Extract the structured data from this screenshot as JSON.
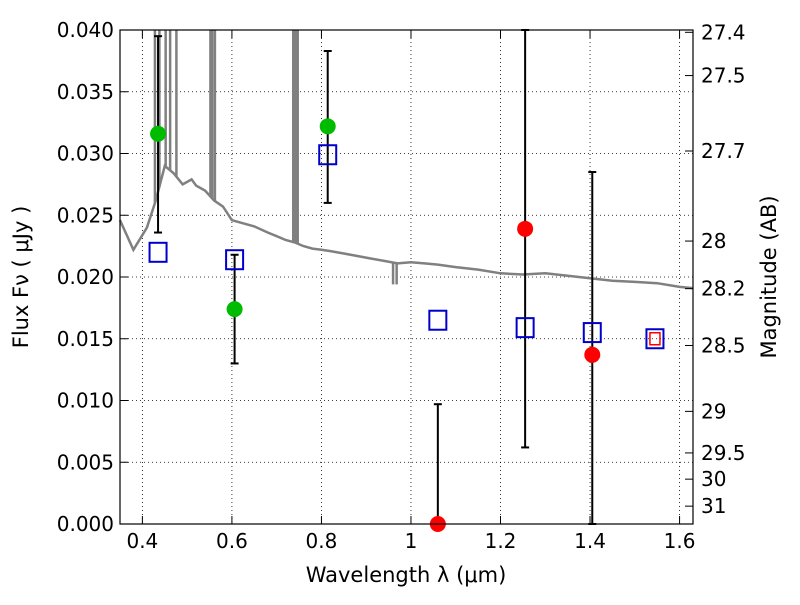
{
  "chart_data": {
    "type": "scatter",
    "title": "",
    "xlabel": "Wavelength  λ (μm)",
    "ylabel": "Flux  Fν  ( μJy )",
    "y2label": "Magnitude (AB)",
    "xlim": [
      0.35,
      1.63
    ],
    "ylim": [
      0.0,
      0.04
    ],
    "grid": true,
    "grid_style": "dotted",
    "x_ticks": [
      0.4,
      0.6,
      0.8,
      1.0,
      1.2,
      1.4,
      1.6
    ],
    "x_tick_labels": [
      "0.4",
      "0.6",
      "0.8",
      "1",
      "1.2",
      "1.4",
      "1.6"
    ],
    "y_ticks": [
      0.0,
      0.005,
      0.01,
      0.015,
      0.02,
      0.025,
      0.03,
      0.035,
      0.04
    ],
    "y_tick_labels": [
      "0.000",
      "0.005",
      "0.010",
      "0.015",
      "0.020",
      "0.025",
      "0.030",
      "0.035",
      "0.040"
    ],
    "mag_ticks": [
      27.4,
      27.5,
      27.7,
      28,
      28.2,
      28.5,
      29,
      29.5,
      30,
      31
    ],
    "mag_tick_labels": [
      "27.4",
      "27.5",
      "27.7",
      "28",
      "28.2",
      "28.5",
      "29",
      "29.5",
      "30",
      "31"
    ],
    "colors": {
      "detected_marker": "#00bb00",
      "red_marker": "#ff0000",
      "model_square": "#0000cc",
      "model_square_inner": "#ff0000",
      "sed_line": "#808080",
      "error_bar": "#000000"
    },
    "series": [
      {
        "marker": "circle",
        "color": "#00bb00",
        "points": [
          {
            "x": 0.435,
            "y": 0.0316,
            "yerr_low": 0.0236,
            "yerr_high": 0.0395
          },
          {
            "x": 0.606,
            "y": 0.0174,
            "yerr_low": 0.013,
            "yerr_high": 0.0218
          },
          {
            "x": 0.814,
            "y": 0.0322,
            "yerr_low": 0.026,
            "yerr_high": 0.0383
          }
        ]
      },
      {
        "marker": "circle",
        "color": "#ff0000",
        "points": [
          {
            "x": 1.06,
            "y": 0.0,
            "yerr_low": 0.0,
            "yerr_high": 0.0097
          },
          {
            "x": 1.255,
            "y": 0.0239,
            "yerr_low": 0.0062,
            "yerr_high": 0.04
          },
          {
            "x": 1.405,
            "y": 0.0137,
            "yerr_low": 0.0,
            "yerr_high": 0.0285
          }
        ]
      },
      {
        "marker": "square",
        "color": "#0000cc",
        "points": [
          {
            "x": 0.435,
            "y": 0.022
          },
          {
            "x": 0.606,
            "y": 0.0214
          },
          {
            "x": 0.814,
            "y": 0.0299
          },
          {
            "x": 1.06,
            "y": 0.0165
          },
          {
            "x": 1.255,
            "y": 0.0159
          },
          {
            "x": 1.405,
            "y": 0.0155
          },
          {
            "x": 1.545,
            "y": 0.015
          }
        ]
      }
    ],
    "inner_square": {
      "x": 1.545,
      "y": 0.015,
      "color": "#ff0000"
    },
    "sed_continuum": [
      [
        0.35,
        0.0246
      ],
      [
        0.38,
        0.0222
      ],
      [
        0.41,
        0.024
      ],
      [
        0.43,
        0.0262
      ],
      [
        0.45,
        0.029
      ],
      [
        0.47,
        0.0284
      ],
      [
        0.49,
        0.0275
      ],
      [
        0.51,
        0.0279
      ],
      [
        0.52,
        0.0274
      ],
      [
        0.54,
        0.027
      ],
      [
        0.56,
        0.0262
      ],
      [
        0.58,
        0.0257
      ],
      [
        0.6,
        0.0246
      ],
      [
        0.62,
        0.0244
      ],
      [
        0.65,
        0.0241
      ],
      [
        0.68,
        0.0236
      ],
      [
        0.7,
        0.0233
      ],
      [
        0.72,
        0.023
      ],
      [
        0.74,
        0.0228
      ],
      [
        0.76,
        0.0225
      ],
      [
        0.78,
        0.0223
      ],
      [
        0.8,
        0.0222
      ],
      [
        0.82,
        0.0221
      ],
      [
        0.85,
        0.0219
      ],
      [
        0.88,
        0.0217
      ],
      [
        0.91,
        0.0215
      ],
      [
        0.94,
        0.0213
      ],
      [
        0.97,
        0.0211
      ],
      [
        1.0,
        0.0212
      ],
      [
        1.03,
        0.0211
      ],
      [
        1.06,
        0.021
      ],
      [
        1.1,
        0.0208
      ],
      [
        1.15,
        0.0206
      ],
      [
        1.2,
        0.0203
      ],
      [
        1.25,
        0.0202
      ],
      [
        1.3,
        0.0203
      ],
      [
        1.35,
        0.0201
      ],
      [
        1.4,
        0.0199
      ],
      [
        1.45,
        0.0197
      ],
      [
        1.5,
        0.0196
      ],
      [
        1.55,
        0.0195
      ],
      [
        1.6,
        0.0192
      ],
      [
        1.63,
        0.0191
      ]
    ],
    "sed_spikes": [
      {
        "x": 0.428,
        "y": 0.04
      },
      {
        "x": 0.438,
        "y": 0.04
      },
      {
        "x": 0.452,
        "y": 0.04
      },
      {
        "x": 0.462,
        "y": 0.04
      },
      {
        "x": 0.476,
        "y": 0.04
      },
      {
        "x": 0.552,
        "y": 0.04
      },
      {
        "x": 0.556,
        "y": 0.04
      },
      {
        "x": 0.562,
        "y": 0.04
      },
      {
        "x": 0.737,
        "y": 0.04
      },
      {
        "x": 0.742,
        "y": 0.04
      },
      {
        "x": 0.747,
        "y": 0.04
      },
      {
        "x": 0.96,
        "y": 0.0194
      },
      {
        "x": 0.968,
        "y": 0.0194
      }
    ]
  }
}
